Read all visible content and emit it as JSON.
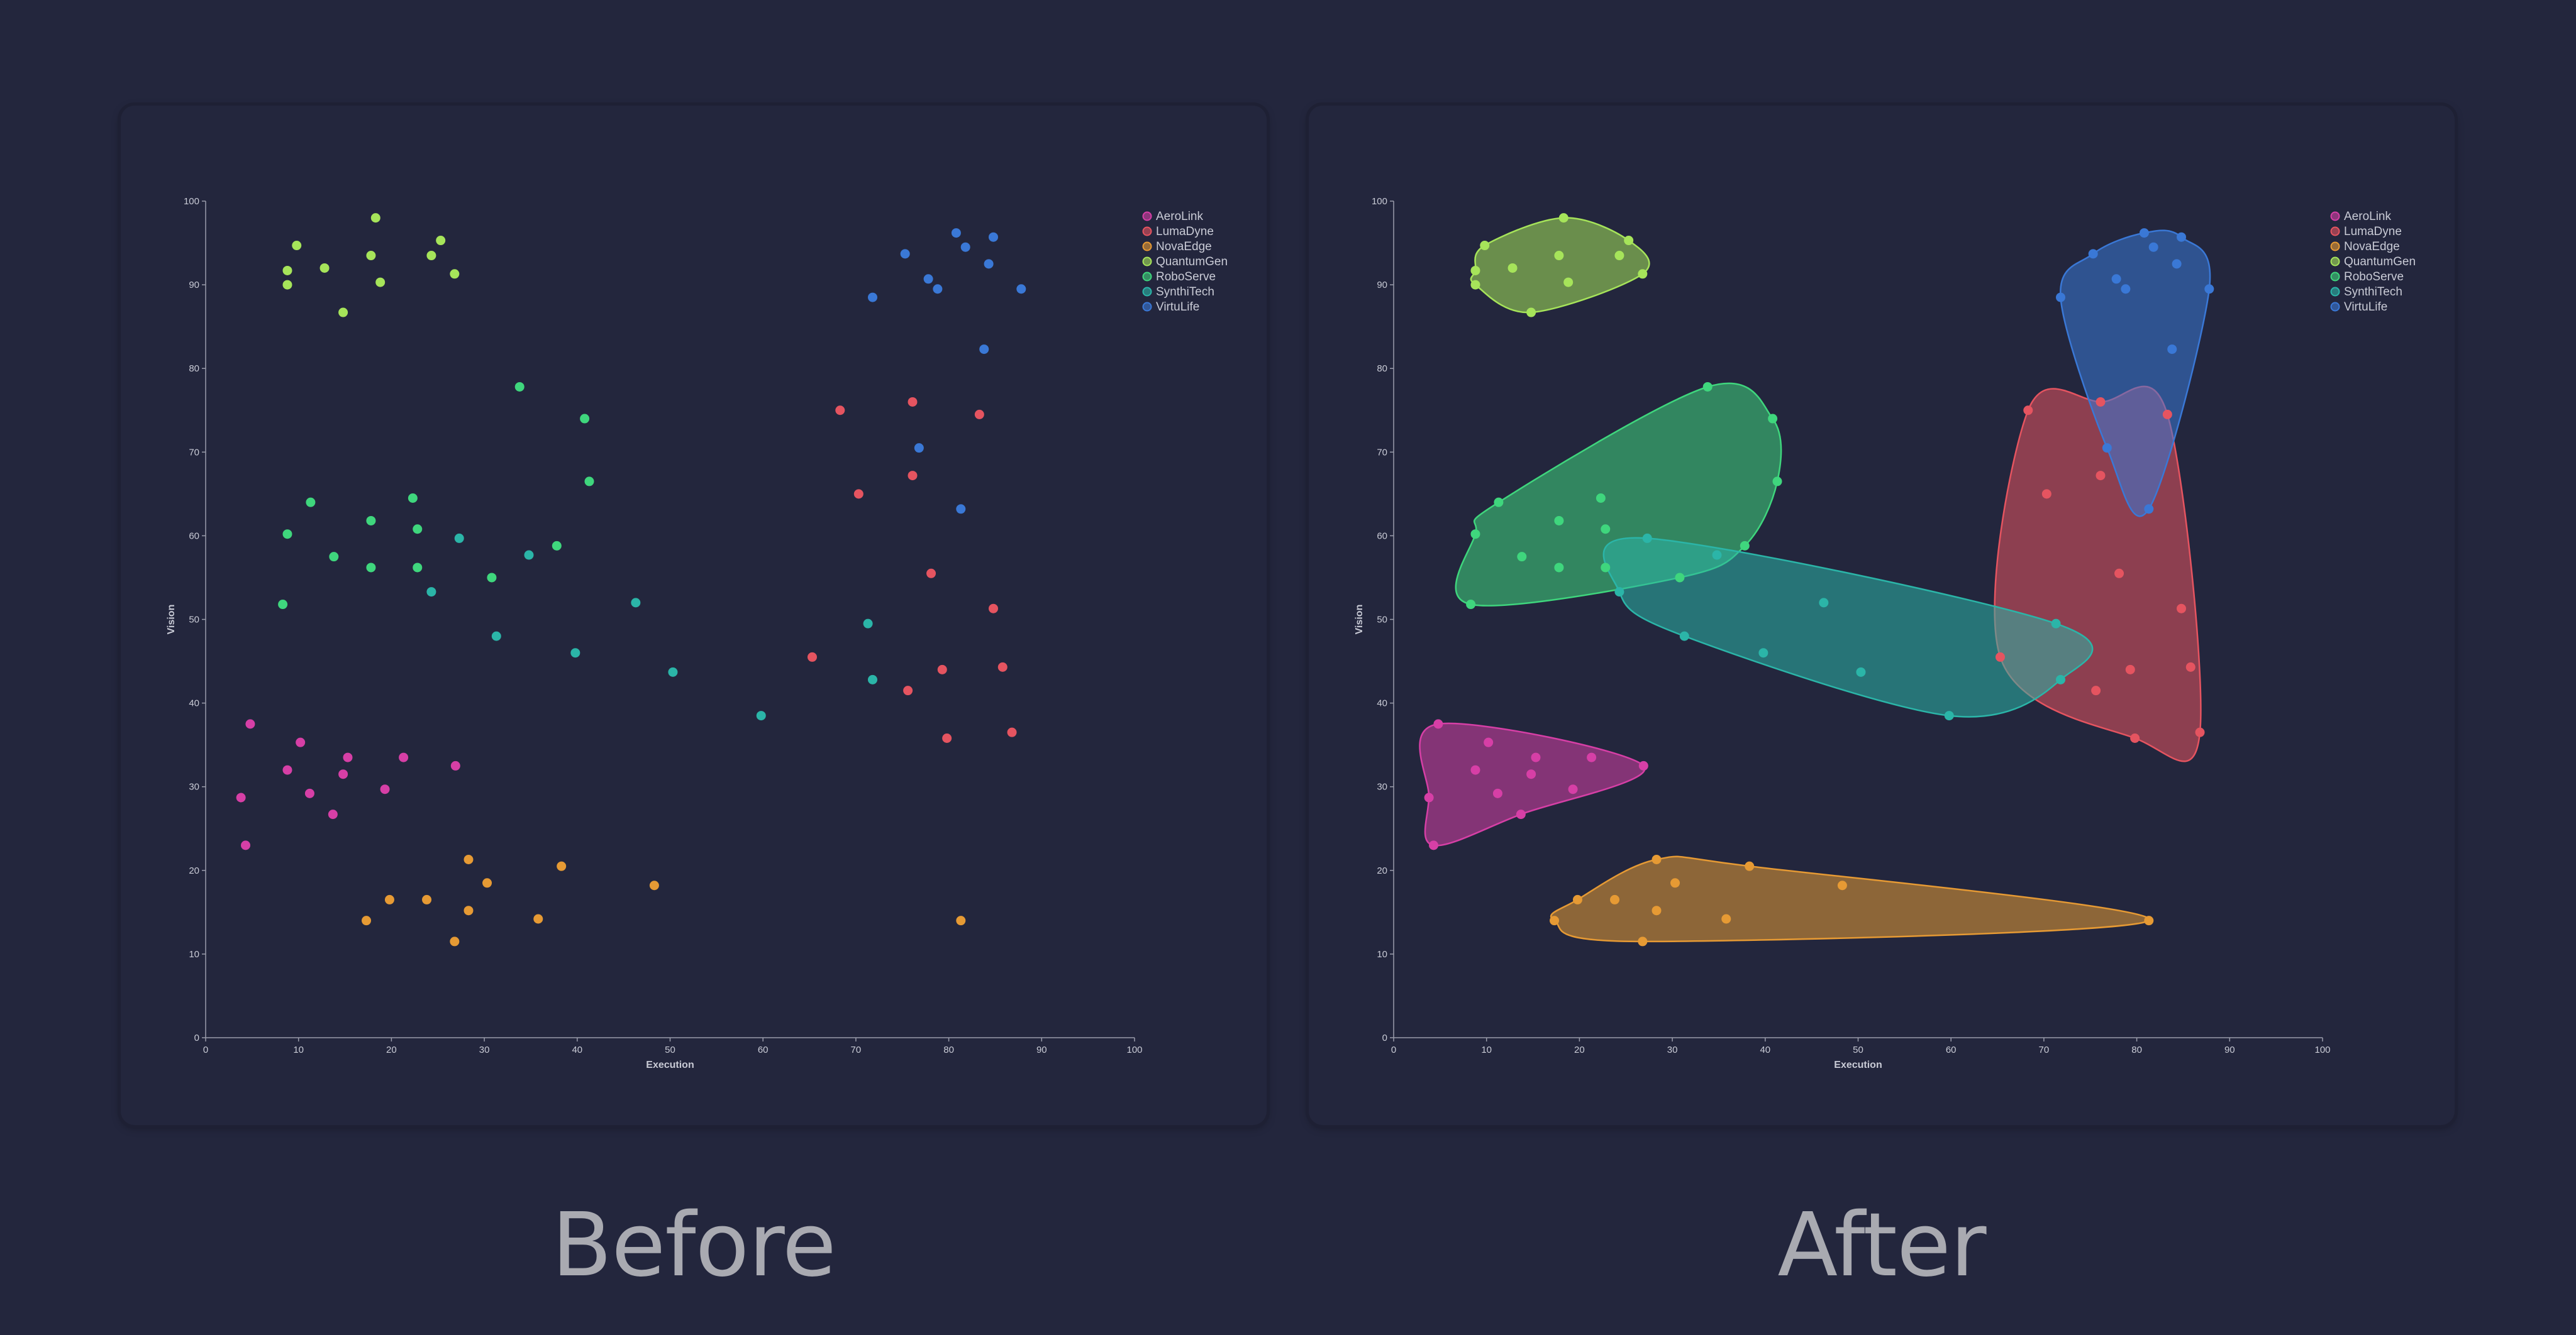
{
  "captions": {
    "before": "Before",
    "after": "After"
  },
  "chart_data": [
    {
      "type": "scatter",
      "title": "",
      "xlabel": "Execution",
      "ylabel": "Vision",
      "xlim": [
        0,
        100
      ],
      "ylim": [
        0,
        100
      ],
      "xticks": [
        "0",
        "10",
        "20",
        "30",
        "40",
        "50",
        "60",
        "70",
        "80",
        "90",
        "100"
      ],
      "yticks": [
        "0",
        "10",
        "20",
        "30",
        "40",
        "50",
        "60",
        "70",
        "80",
        "90",
        "100"
      ],
      "grid": false,
      "legend_position": "top-right",
      "hulls": false,
      "series_ref": "shared"
    },
    {
      "type": "scatter",
      "title": "",
      "xlabel": "Execution",
      "ylabel": "Vision",
      "xlim": [
        0,
        100
      ],
      "ylim": [
        0,
        100
      ],
      "xticks": [
        "0",
        "10",
        "20",
        "30",
        "40",
        "50",
        "60",
        "70",
        "80",
        "90",
        "100"
      ],
      "yticks": [
        "0",
        "10",
        "20",
        "30",
        "40",
        "50",
        "60",
        "70",
        "80",
        "90",
        "100"
      ],
      "grid": false,
      "legend_position": "top-right",
      "hulls": true,
      "series_ref": "shared"
    }
  ],
  "series": [
    {
      "name": "AeroLink",
      "color": "#d63fa6",
      "points": [
        [
          3.8,
          28.7
        ],
        [
          4.3,
          23.0
        ],
        [
          4.8,
          37.5
        ],
        [
          8.8,
          32.0
        ],
        [
          10.2,
          35.3
        ],
        [
          11.2,
          29.2
        ],
        [
          13.7,
          26.7
        ],
        [
          14.8,
          31.5
        ],
        [
          15.3,
          33.5
        ],
        [
          19.3,
          29.7
        ],
        [
          21.3,
          33.5
        ],
        [
          26.9,
          32.5
        ]
      ]
    },
    {
      "name": "LumaDyne",
      "color": "#e55460",
      "points": [
        [
          65.3,
          45.5
        ],
        [
          68.3,
          75.0
        ],
        [
          70.3,
          65.0
        ],
        [
          75.6,
          41.5
        ],
        [
          76.1,
          76.0
        ],
        [
          76.1,
          67.2
        ],
        [
          78.1,
          55.5
        ],
        [
          79.3,
          44.0
        ],
        [
          79.8,
          35.8
        ],
        [
          83.3,
          74.5
        ],
        [
          84.8,
          51.3
        ],
        [
          85.8,
          44.3
        ],
        [
          86.8,
          36.5
        ]
      ]
    },
    {
      "name": "NovaEdge",
      "color": "#e69a34",
      "points": [
        [
          17.3,
          14.0
        ],
        [
          19.8,
          16.5
        ],
        [
          23.8,
          16.5
        ],
        [
          26.8,
          11.5
        ],
        [
          28.3,
          21.3
        ],
        [
          28.3,
          15.2
        ],
        [
          30.3,
          18.5
        ],
        [
          35.8,
          14.2
        ],
        [
          38.3,
          20.5
        ],
        [
          48.3,
          18.2
        ],
        [
          81.3,
          14.0
        ]
      ]
    },
    {
      "name": "QuantumGen",
      "color": "#a6e45a",
      "points": [
        [
          8.8,
          91.7
        ],
        [
          8.8,
          90.0
        ],
        [
          9.8,
          94.7
        ],
        [
          12.8,
          92.0
        ],
        [
          14.8,
          86.7
        ],
        [
          17.8,
          93.5
        ],
        [
          18.3,
          98.0
        ],
        [
          18.8,
          90.3
        ],
        [
          24.3,
          93.5
        ],
        [
          25.3,
          95.3
        ],
        [
          26.8,
          91.3
        ]
      ]
    },
    {
      "name": "RoboServe",
      "color": "#3fd67d",
      "points": [
        [
          8.3,
          51.8
        ],
        [
          8.8,
          60.2
        ],
        [
          11.3,
          64.0
        ],
        [
          13.8,
          57.5
        ],
        [
          17.8,
          61.8
        ],
        [
          17.8,
          56.2
        ],
        [
          22.3,
          64.5
        ],
        [
          22.8,
          60.8
        ],
        [
          22.8,
          56.2
        ],
        [
          30.8,
          55.0
        ],
        [
          33.8,
          77.8
        ],
        [
          37.8,
          58.8
        ],
        [
          40.8,
          74.0
        ],
        [
          41.3,
          66.5
        ]
      ]
    },
    {
      "name": "SynthiTech",
      "color": "#2bb5a8",
      "points": [
        [
          24.3,
          53.3
        ],
        [
          27.3,
          59.7
        ],
        [
          31.3,
          48.0
        ],
        [
          34.8,
          57.7
        ],
        [
          39.8,
          46.0
        ],
        [
          46.3,
          52.0
        ],
        [
          50.3,
          43.7
        ],
        [
          59.8,
          38.5
        ],
        [
          71.3,
          49.5
        ],
        [
          71.8,
          42.8
        ]
      ]
    },
    {
      "name": "VirtuLife",
      "color": "#3a78d6",
      "points": [
        [
          71.8,
          88.5
        ],
        [
          75.3,
          93.7
        ],
        [
          77.8,
          90.7
        ],
        [
          78.8,
          89.5
        ],
        [
          76.8,
          70.5
        ],
        [
          80.8,
          96.2
        ],
        [
          81.3,
          63.2
        ],
        [
          81.8,
          94.5
        ],
        [
          83.8,
          82.3
        ],
        [
          84.3,
          92.5
        ],
        [
          84.8,
          95.7
        ],
        [
          87.8,
          89.5
        ]
      ]
    }
  ]
}
